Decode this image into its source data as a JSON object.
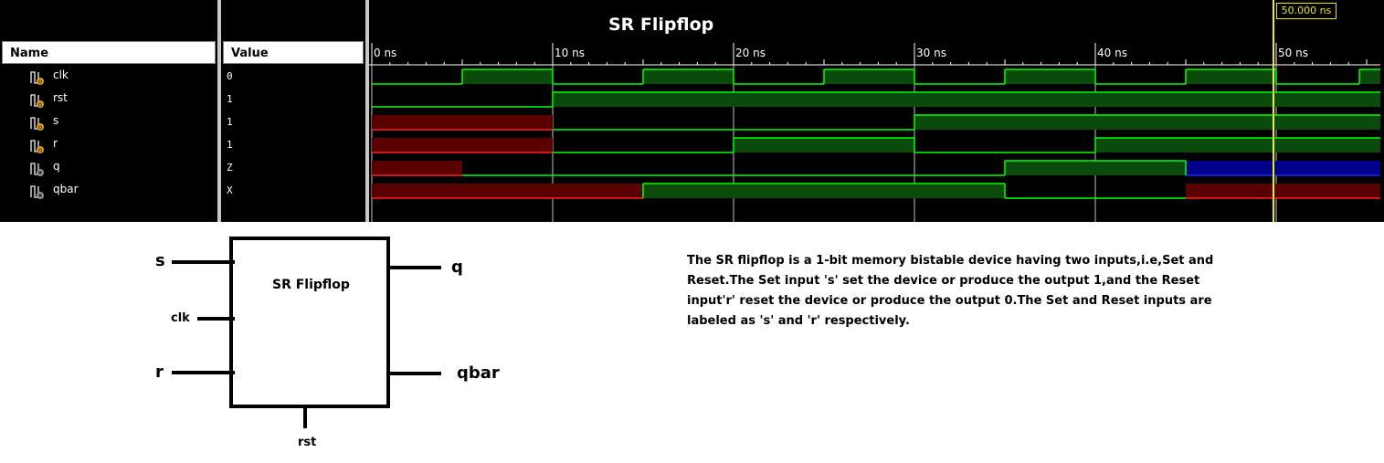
{
  "simulator": {
    "title": "SR Flipflop",
    "cursor_label": "50.000 ns",
    "name_header": "Name",
    "value_header": "Value",
    "time_unit": "ns",
    "time_ticks": [
      "0 ns",
      "10 ns",
      "20 ns",
      "30 ns",
      "40 ns",
      "50 ns"
    ],
    "cursor_time_ns": 50,
    "signals": [
      {
        "name": "clk",
        "value": "0",
        "kind": "input",
        "icon": "input-signal-icon"
      },
      {
        "name": "rst",
        "value": "1",
        "kind": "input",
        "icon": "input-signal-icon"
      },
      {
        "name": "s",
        "value": "1",
        "kind": "input",
        "icon": "input-signal-icon"
      },
      {
        "name": "r",
        "value": "1",
        "kind": "input",
        "icon": "input-signal-icon"
      },
      {
        "name": "q",
        "value": "Z",
        "kind": "output",
        "icon": "output-signal-icon"
      },
      {
        "name": "qbar",
        "value": "X",
        "kind": "output",
        "icon": "output-signal-icon"
      }
    ],
    "waveforms": [
      {
        "signal": "clk",
        "segments": [
          [
            0,
            5,
            "0"
          ],
          [
            5,
            10,
            "1"
          ],
          [
            10,
            15,
            "0"
          ],
          [
            15,
            20,
            "1"
          ],
          [
            20,
            25,
            "0"
          ],
          [
            25,
            30,
            "1"
          ],
          [
            30,
            35,
            "0"
          ],
          [
            35,
            40,
            "1"
          ],
          [
            40,
            45,
            "0"
          ],
          [
            45,
            50,
            "1"
          ],
          [
            50,
            54.6,
            "0"
          ],
          [
            54.6,
            56,
            "1"
          ]
        ]
      },
      {
        "signal": "rst",
        "segments": [
          [
            0,
            10,
            "0"
          ],
          [
            10,
            56,
            "1"
          ]
        ]
      },
      {
        "signal": "s",
        "segments": [
          [
            0,
            10,
            "X"
          ],
          [
            10,
            30,
            "0"
          ],
          [
            30,
            56,
            "1"
          ]
        ]
      },
      {
        "signal": "r",
        "segments": [
          [
            0,
            10,
            "X"
          ],
          [
            10,
            20,
            "0"
          ],
          [
            20,
            30,
            "1"
          ],
          [
            30,
            40,
            "0"
          ],
          [
            40,
            56,
            "1"
          ]
        ]
      },
      {
        "signal": "q",
        "segments": [
          [
            0,
            5,
            "X"
          ],
          [
            5,
            35,
            "0"
          ],
          [
            35,
            45,
            "1"
          ],
          [
            45,
            56,
            "Z"
          ]
        ]
      },
      {
        "signal": "qbar",
        "segments": [
          [
            0,
            15,
            "X"
          ],
          [
            15,
            35,
            "1"
          ],
          [
            35,
            45,
            "0"
          ],
          [
            45,
            56,
            "X"
          ]
        ]
      }
    ],
    "colors": {
      "high": "#00ff00",
      "fill_high": "#0a4a0a",
      "unknown": "#ff2020",
      "fill_unknown": "#5a0000",
      "hiz": "#2020ff",
      "fill_hiz": "#00008a",
      "cursor": "#f0f000",
      "grid": "#c0c0c0"
    }
  },
  "diagram": {
    "block_label": "SR Flipflop",
    "inputs": [
      "s",
      "clk",
      "r"
    ],
    "outputs": [
      "q",
      "qbar"
    ],
    "bottom_input": "rst"
  },
  "description": "The SR flipflop is a 1-bit memory bistable device having two inputs,i.e,Set and Reset.The Set input 's' set the device or produce the output 1,and the Reset input'r' reset the device or produce the output 0.The Set and Reset inputs are labeled as 's' and 'r' respectively."
}
